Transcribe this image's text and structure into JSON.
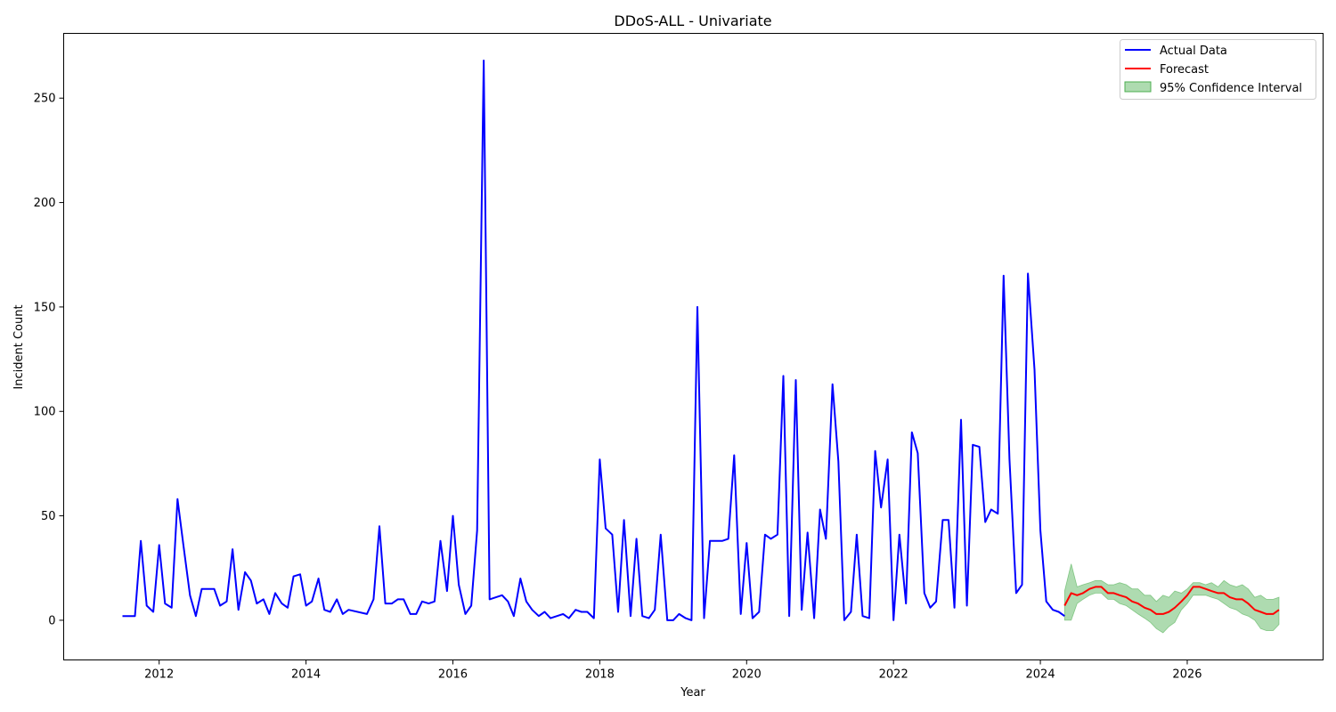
{
  "chart_data": {
    "type": "line",
    "title": "DDoS-ALL - Univariate",
    "xlabel": "Year",
    "ylabel": "Incident Count",
    "xlim": [
      2010.7,
      2027.85
    ],
    "ylim": [
      -19,
      281
    ],
    "x_ticks": [
      2012,
      2014,
      2016,
      2018,
      2020,
      2022,
      2024,
      2026
    ],
    "y_ticks": [
      0,
      50,
      100,
      150,
      200,
      250
    ],
    "grid": false,
    "legend_position": "top-right",
    "legend": {
      "actual": "Actual Data",
      "forecast": "Forecast",
      "ci": "95% Confidence Interval"
    },
    "colors": {
      "actual": "#0000ff",
      "forecast": "#ff0000",
      "ci_fill": "#4caf50"
    },
    "series": [
      {
        "name": "Actual Data",
        "points": [
          [
            2011.5,
            2
          ],
          [
            2011.58,
            2
          ],
          [
            2011.67,
            2
          ],
          [
            2011.75,
            38
          ],
          [
            2011.83,
            7
          ],
          [
            2011.92,
            4
          ],
          [
            2012.0,
            36
          ],
          [
            2012.08,
            8
          ],
          [
            2012.17,
            6
          ],
          [
            2012.25,
            58
          ],
          [
            2012.33,
            36
          ],
          [
            2012.42,
            12
          ],
          [
            2012.5,
            2
          ],
          [
            2012.58,
            15
          ],
          [
            2012.67,
            15
          ],
          [
            2012.75,
            15
          ],
          [
            2012.83,
            7
          ],
          [
            2012.92,
            9
          ],
          [
            2013.0,
            34
          ],
          [
            2013.08,
            5
          ],
          [
            2013.17,
            23
          ],
          [
            2013.25,
            19
          ],
          [
            2013.33,
            8
          ],
          [
            2013.42,
            10
          ],
          [
            2013.5,
            3
          ],
          [
            2013.58,
            13
          ],
          [
            2013.67,
            8
          ],
          [
            2013.75,
            6
          ],
          [
            2013.83,
            21
          ],
          [
            2013.92,
            22
          ],
          [
            2014.0,
            7
          ],
          [
            2014.08,
            9
          ],
          [
            2014.17,
            20
          ],
          [
            2014.25,
            5
          ],
          [
            2014.33,
            4
          ],
          [
            2014.42,
            10
          ],
          [
            2014.5,
            3
          ],
          [
            2014.58,
            5
          ],
          [
            2014.83,
            3
          ],
          [
            2014.92,
            10
          ],
          [
            2015.0,
            45
          ],
          [
            2015.08,
            8
          ],
          [
            2015.17,
            8
          ],
          [
            2015.25,
            10
          ],
          [
            2015.33,
            10
          ],
          [
            2015.42,
            3
          ],
          [
            2015.5,
            3
          ],
          [
            2015.58,
            9
          ],
          [
            2015.67,
            8
          ],
          [
            2015.75,
            9
          ],
          [
            2015.83,
            38
          ],
          [
            2015.92,
            14
          ],
          [
            2016.0,
            50
          ],
          [
            2016.08,
            17
          ],
          [
            2016.17,
            3
          ],
          [
            2016.25,
            7
          ],
          [
            2016.33,
            43
          ],
          [
            2016.42,
            268
          ],
          [
            2016.5,
            10
          ],
          [
            2016.67,
            12
          ],
          [
            2016.75,
            9
          ],
          [
            2016.83,
            2
          ],
          [
            2016.92,
            20
          ],
          [
            2017.0,
            9
          ],
          [
            2017.08,
            5
          ],
          [
            2017.17,
            2
          ],
          [
            2017.25,
            4
          ],
          [
            2017.33,
            1
          ],
          [
            2017.5,
            3
          ],
          [
            2017.58,
            1
          ],
          [
            2017.67,
            5
          ],
          [
            2017.75,
            4
          ],
          [
            2017.83,
            4
          ],
          [
            2017.92,
            1
          ],
          [
            2018.0,
            77
          ],
          [
            2018.08,
            44
          ],
          [
            2018.17,
            41
          ],
          [
            2018.25,
            4
          ],
          [
            2018.33,
            48
          ],
          [
            2018.42,
            2
          ],
          [
            2018.5,
            39
          ],
          [
            2018.58,
            2
          ],
          [
            2018.67,
            1
          ],
          [
            2018.75,
            5
          ],
          [
            2018.83,
            41
          ],
          [
            2018.92,
            0
          ],
          [
            2019.0,
            0
          ],
          [
            2019.08,
            3
          ],
          [
            2019.17,
            1
          ],
          [
            2019.25,
            0
          ],
          [
            2019.33,
            150
          ],
          [
            2019.42,
            1
          ],
          [
            2019.5,
            38
          ],
          [
            2019.58,
            38
          ],
          [
            2019.67,
            38
          ],
          [
            2019.75,
            39
          ],
          [
            2019.83,
            79
          ],
          [
            2019.92,
            3
          ],
          [
            2020.0,
            37
          ],
          [
            2020.08,
            1
          ],
          [
            2020.17,
            4
          ],
          [
            2020.25,
            41
          ],
          [
            2020.33,
            39
          ],
          [
            2020.42,
            41
          ],
          [
            2020.5,
            117
          ],
          [
            2020.58,
            2
          ],
          [
            2020.67,
            115
          ],
          [
            2020.75,
            5
          ],
          [
            2020.83,
            42
          ],
          [
            2020.92,
            1
          ],
          [
            2021.0,
            53
          ],
          [
            2021.08,
            39
          ],
          [
            2021.17,
            113
          ],
          [
            2021.25,
            76
          ],
          [
            2021.33,
            0
          ],
          [
            2021.42,
            4
          ],
          [
            2021.5,
            41
          ],
          [
            2021.58,
            2
          ],
          [
            2021.67,
            1
          ],
          [
            2021.75,
            81
          ],
          [
            2021.83,
            54
          ],
          [
            2021.92,
            77
          ],
          [
            2022.0,
            0
          ],
          [
            2022.08,
            41
          ],
          [
            2022.17,
            8
          ],
          [
            2022.25,
            90
          ],
          [
            2022.33,
            80
          ],
          [
            2022.42,
            13
          ],
          [
            2022.5,
            6
          ],
          [
            2022.58,
            9
          ],
          [
            2022.67,
            48
          ],
          [
            2022.75,
            48
          ],
          [
            2022.83,
            6
          ],
          [
            2022.92,
            96
          ],
          [
            2023.0,
            7
          ],
          [
            2023.08,
            84
          ],
          [
            2023.17,
            83
          ],
          [
            2023.25,
            47
          ],
          [
            2023.33,
            53
          ],
          [
            2023.42,
            51
          ],
          [
            2023.5,
            165
          ],
          [
            2023.58,
            77
          ],
          [
            2023.67,
            13
          ],
          [
            2023.75,
            17
          ],
          [
            2023.83,
            166
          ],
          [
            2023.92,
            120
          ],
          [
            2024.0,
            43
          ],
          [
            2024.08,
            9
          ],
          [
            2024.17,
            5
          ],
          [
            2024.25,
            4
          ],
          [
            2024.33,
            2
          ]
        ]
      },
      {
        "name": "Forecast",
        "points": [
          [
            2024.33,
            7
          ],
          [
            2024.42,
            13
          ],
          [
            2024.5,
            12
          ],
          [
            2024.58,
            13
          ],
          [
            2024.67,
            15
          ],
          [
            2024.75,
            16
          ],
          [
            2024.83,
            16
          ],
          [
            2024.92,
            13
          ],
          [
            2025.0,
            13
          ],
          [
            2025.08,
            12
          ],
          [
            2025.17,
            11
          ],
          [
            2025.25,
            9
          ],
          [
            2025.33,
            8
          ],
          [
            2025.42,
            6
          ],
          [
            2025.5,
            5
          ],
          [
            2025.58,
            3
          ],
          [
            2025.67,
            3
          ],
          [
            2025.75,
            4
          ],
          [
            2025.83,
            6
          ],
          [
            2025.92,
            9
          ],
          [
            2026.0,
            12
          ],
          [
            2026.08,
            16
          ],
          [
            2026.17,
            16
          ],
          [
            2026.25,
            15
          ],
          [
            2026.33,
            14
          ],
          [
            2026.42,
            13
          ],
          [
            2026.5,
            13
          ],
          [
            2026.58,
            11
          ],
          [
            2026.67,
            10
          ],
          [
            2026.75,
            10
          ],
          [
            2026.83,
            8
          ],
          [
            2026.92,
            5
          ],
          [
            2027.0,
            4
          ],
          [
            2027.08,
            3
          ],
          [
            2027.17,
            3
          ],
          [
            2027.25,
            5
          ]
        ]
      }
    ],
    "confidence_interval": {
      "name": "95% Confidence Interval",
      "upper": [
        [
          2024.33,
          14
        ],
        [
          2024.42,
          27
        ],
        [
          2024.5,
          16
        ],
        [
          2024.58,
          17
        ],
        [
          2024.67,
          18
        ],
        [
          2024.75,
          19
        ],
        [
          2024.83,
          19
        ],
        [
          2024.92,
          17
        ],
        [
          2025.0,
          17
        ],
        [
          2025.08,
          18
        ],
        [
          2025.17,
          17
        ],
        [
          2025.25,
          15
        ],
        [
          2025.33,
          15
        ],
        [
          2025.42,
          12
        ],
        [
          2025.5,
          12
        ],
        [
          2025.58,
          9
        ],
        [
          2025.67,
          12
        ],
        [
          2025.75,
          11
        ],
        [
          2025.83,
          14
        ],
        [
          2025.92,
          13
        ],
        [
          2026.0,
          15
        ],
        [
          2026.08,
          18
        ],
        [
          2026.17,
          18
        ],
        [
          2026.25,
          17
        ],
        [
          2026.33,
          18
        ],
        [
          2026.42,
          16
        ],
        [
          2026.5,
          19
        ],
        [
          2026.58,
          17
        ],
        [
          2026.67,
          16
        ],
        [
          2026.75,
          17
        ],
        [
          2026.83,
          15
        ],
        [
          2026.92,
          11
        ],
        [
          2027.0,
          12
        ],
        [
          2027.08,
          10
        ],
        [
          2027.17,
          10
        ],
        [
          2027.25,
          11
        ]
      ],
      "lower": [
        [
          2024.33,
          0
        ],
        [
          2024.42,
          0
        ],
        [
          2024.5,
          8
        ],
        [
          2024.58,
          10
        ],
        [
          2024.67,
          12
        ],
        [
          2024.75,
          13
        ],
        [
          2024.83,
          13
        ],
        [
          2024.92,
          10
        ],
        [
          2025.0,
          10
        ],
        [
          2025.08,
          8
        ],
        [
          2025.17,
          7
        ],
        [
          2025.25,
          5
        ],
        [
          2025.33,
          3
        ],
        [
          2025.42,
          1
        ],
        [
          2025.5,
          -1
        ],
        [
          2025.58,
          -4
        ],
        [
          2025.67,
          -6
        ],
        [
          2025.75,
          -3
        ],
        [
          2025.83,
          -1
        ],
        [
          2025.92,
          5
        ],
        [
          2026.0,
          8
        ],
        [
          2026.08,
          12
        ],
        [
          2026.17,
          12
        ],
        [
          2026.25,
          12
        ],
        [
          2026.33,
          11
        ],
        [
          2026.42,
          10
        ],
        [
          2026.5,
          8
        ],
        [
          2026.58,
          6
        ],
        [
          2026.67,
          5
        ],
        [
          2026.75,
          3
        ],
        [
          2026.83,
          2
        ],
        [
          2026.92,
          0
        ],
        [
          2027.0,
          -4
        ],
        [
          2027.08,
          -5
        ],
        [
          2027.17,
          -5
        ],
        [
          2027.25,
          -2
        ]
      ]
    }
  }
}
